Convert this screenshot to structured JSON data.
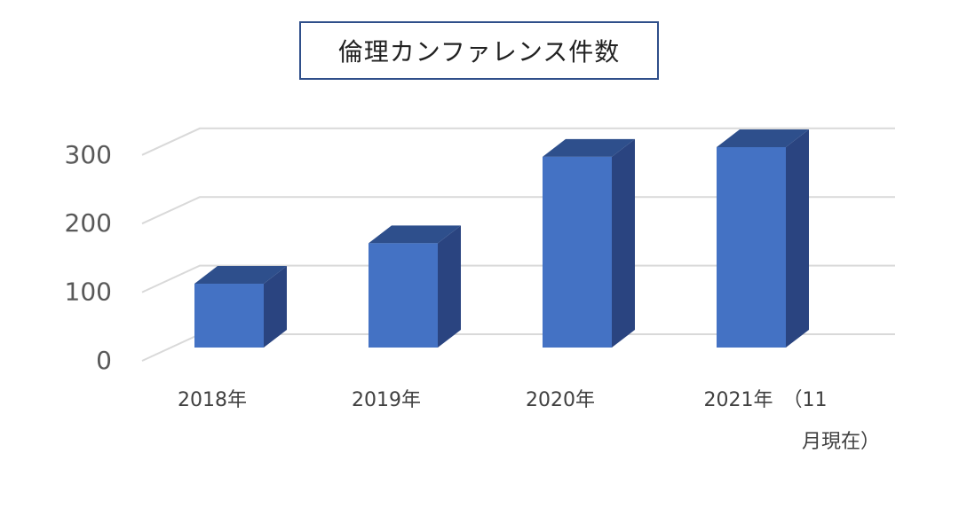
{
  "chart_data": {
    "type": "bar",
    "title": "倫理カンファレンス件数",
    "categories": [
      "2018年",
      "2019年",
      "2020年",
      "2021年　（11月現在）"
    ],
    "category_label_lines": [
      [
        "2018年"
      ],
      [
        "2019年"
      ],
      [
        "2020年"
      ],
      [
        "2021年　（11",
        "月現在）"
      ]
    ],
    "values": [
      93,
      152,
      278,
      292
    ],
    "ylim": [
      0,
      300
    ],
    "yticks": [
      0,
      100,
      200,
      300
    ],
    "grid": true,
    "style": "3d-column",
    "colors": {
      "front": "#4472c4",
      "side": "#2a4480",
      "top": "#2e4f8c",
      "grid": "#d9d9d9",
      "axis_text": "#595959"
    }
  }
}
